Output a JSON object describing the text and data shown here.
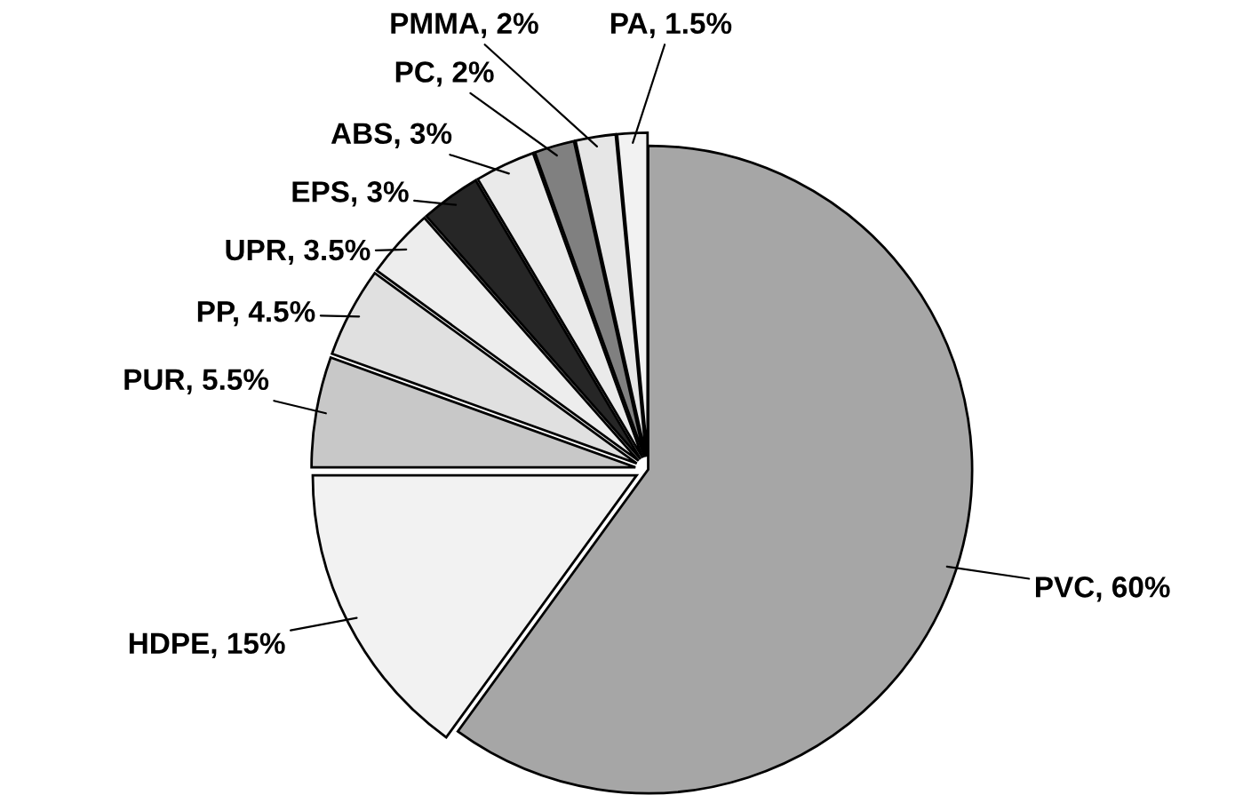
{
  "chart_data": {
    "type": "pie",
    "categories": [
      "PVC",
      "HDPE",
      "PUR",
      "PP",
      "UPR",
      "EPS",
      "ABS",
      "PC",
      "PMMA",
      "PA"
    ],
    "values": [
      60,
      15,
      5.5,
      4.5,
      3.5,
      3,
      3,
      2,
      2,
      1.5
    ],
    "value_labels": [
      "60%",
      "15%",
      "5.5%",
      "4.5%",
      "3.5%",
      "3%",
      "3%",
      "2%",
      "2%",
      "1.5%"
    ],
    "colors": [
      "#a6a6a6",
      "#f2f2f2",
      "#c8c8c8",
      "#e0e0e0",
      "#ededed",
      "#262626",
      "#eaeaea",
      "#808080",
      "#e6e6e6",
      "#f2f2f2"
    ],
    "legend": false
  }
}
